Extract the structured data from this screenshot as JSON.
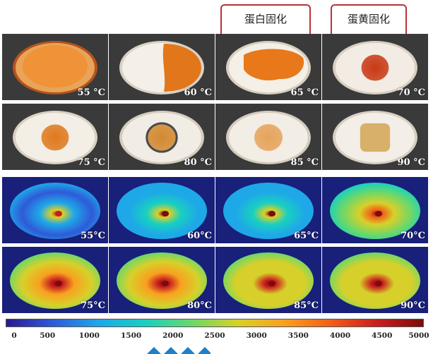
{
  "annotations": [
    {
      "label": "蛋白固化",
      "column": 2
    },
    {
      "label": "蛋黄固化",
      "column": 3
    }
  ],
  "photo_panels": [
    {
      "temp": "55 °C",
      "shell": "#b5531e",
      "white": "#e8a458",
      "yolk": "#f09035",
      "yolk_r": 0.55,
      "yolk_style": "soft"
    },
    {
      "temp": "60 °C",
      "shell": "#d9d2c4",
      "white": "#f4efe8",
      "yolk": "#e2761a",
      "yolk_r": 0.55,
      "yolk_style": "half"
    },
    {
      "temp": "65 °C",
      "shell": "#d8cfbf",
      "white": "#f4efe7",
      "yolk": "#e8781a",
      "yolk_r": 0.5,
      "yolk_style": "wide"
    },
    {
      "temp": "70 °C",
      "shell": "#d8cfbf",
      "white": "#f2ece4",
      "yolk": "#c83a16",
      "yolk_r": 0.33,
      "yolk_style": "round"
    },
    {
      "temp": "75 °C",
      "shell": "#d8d0c2",
      "white": "#f3eee6",
      "yolk": "#df7a1e",
      "yolk_r": 0.33,
      "yolk_style": "round"
    },
    {
      "temp": "80 °C",
      "shell": "#d4ccbe",
      "white": "#f1ece4",
      "yolk": "#d28a32",
      "yolk_r": 0.36,
      "yolk_style": "ringed"
    },
    {
      "temp": "85 °C",
      "shell": "#d3cbbd",
      "white": "#f2ede5",
      "yolk": "#e6a45c",
      "yolk_r": 0.34,
      "yolk_style": "round"
    },
    {
      "temp": "90 °C",
      "shell": "#d6cfc2",
      "white": "#f3eee7",
      "yolk": "#d8b06a",
      "yolk_r": 0.36,
      "yolk_style": "square"
    }
  ],
  "heat_panels": [
    {
      "temp": "55°C",
      "level": 0.15,
      "spot": 0.9
    },
    {
      "temp": "60°C",
      "level": 0.2,
      "spot": 0.95
    },
    {
      "temp": "65°C",
      "level": 0.24,
      "spot": 0.97
    },
    {
      "temp": "70°C",
      "level": 0.42,
      "spot": 1.0
    },
    {
      "temp": "75°C",
      "level": 0.55,
      "spot": 1.0
    },
    {
      "temp": "80°C",
      "level": 0.52,
      "spot": 1.0
    },
    {
      "temp": "85°C",
      "level": 0.5,
      "spot": 1.0
    },
    {
      "temp": "90°C",
      "level": 0.5,
      "spot": 0.95
    }
  ],
  "colorbar": {
    "min": 0,
    "max": 5000,
    "ticks": [
      "0",
      "500",
      "1000",
      "1500",
      "2000",
      "2500",
      "3000",
      "3500",
      "4000",
      "4500",
      "5000"
    ],
    "colors": [
      "#2a1a8c",
      "#2f5ad8",
      "#1ea8e8",
      "#18d0c0",
      "#6ad86a",
      "#d8d02a",
      "#f8a020",
      "#f06018",
      "#c81e1e",
      "#7a0c0c"
    ]
  },
  "panel_background": "#3a3a3a",
  "heat_background": "#18207a",
  "watermark_color": "#1f7fc8"
}
